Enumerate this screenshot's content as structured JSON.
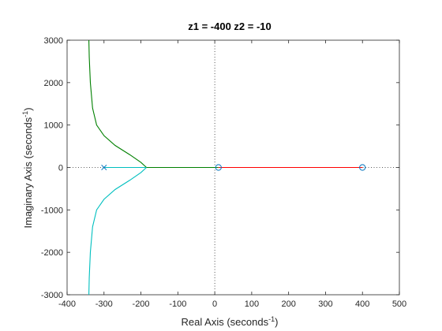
{
  "chart_data": {
    "type": "line",
    "title": "z1 = -400  z2 = -10",
    "xlabel": {
      "main": "Real Axis (seconds",
      "exp": "-1",
      "close": ")"
    },
    "ylabel": {
      "main": "Imaginary Axis (seconds",
      "exp": "-1",
      "close": ")"
    },
    "xlim": [
      -400,
      500
    ],
    "ylim": [
      -3000,
      3000
    ],
    "xticks": [
      -400,
      -300,
      -200,
      -100,
      0,
      100,
      200,
      300,
      400,
      500
    ],
    "yticks": [
      -3000,
      -2000,
      -1000,
      0,
      1000,
      2000,
      3000
    ],
    "grid": false,
    "colors": {
      "branch_upper": "#008000",
      "branch_lower": "#00bfbf",
      "branch_right": "#ff0000",
      "axes": "#262626",
      "reference": "#262626",
      "marker": "#0072bd"
    },
    "series": [
      {
        "color_key": "branch_upper",
        "points": [
          [
            -185,
            0
          ],
          [
            -200,
            120
          ],
          [
            -230,
            300
          ],
          [
            -270,
            520
          ],
          [
            -300,
            750
          ],
          [
            -320,
            1000
          ],
          [
            -331,
            1400
          ],
          [
            -337,
            2000
          ],
          [
            -340,
            2600
          ],
          [
            -341,
            3000
          ]
        ]
      },
      {
        "color_key": "branch_lower",
        "points": [
          [
            -185,
            0
          ],
          [
            -200,
            -120
          ],
          [
            -230,
            -300
          ],
          [
            -270,
            -520
          ],
          [
            -300,
            -750
          ],
          [
            -320,
            -1000
          ],
          [
            -331,
            -1400
          ],
          [
            -337,
            -2000
          ],
          [
            -340,
            -2600
          ],
          [
            -341,
            -3000
          ]
        ]
      },
      {
        "color_key": "branch_lower",
        "points": [
          [
            -300,
            0
          ],
          [
            -185,
            0
          ]
        ]
      },
      {
        "color_key": "branch_upper",
        "points": [
          [
            -185,
            0
          ],
          [
            10,
            0
          ]
        ]
      },
      {
        "color_key": "branch_right",
        "points": [
          [
            10,
            0
          ],
          [
            400,
            0
          ]
        ]
      }
    ],
    "poles": [
      [
        -300,
        0
      ],
      [
        0,
        0
      ],
      [
        0,
        0
      ]
    ],
    "zeros": [
      [
        10,
        0
      ],
      [
        400,
        0
      ]
    ]
  }
}
